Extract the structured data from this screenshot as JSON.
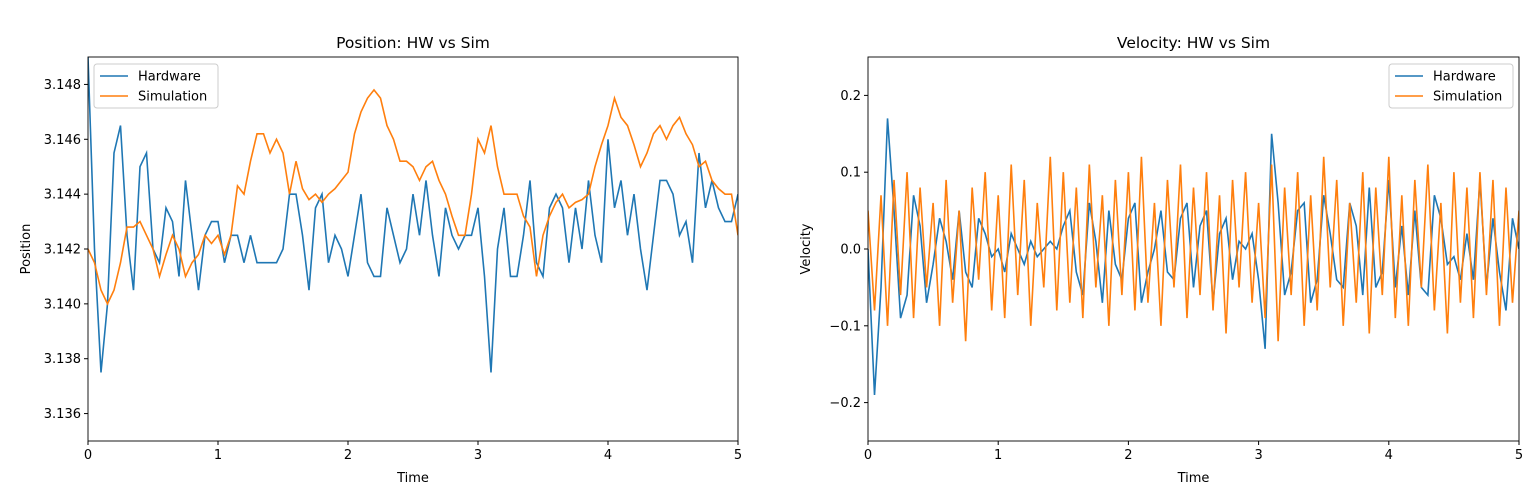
{
  "chart_data": [
    {
      "type": "line",
      "title": "Position: HW vs Sim",
      "xlabel": "Time",
      "ylabel": "Position",
      "xlim": [
        0,
        5
      ],
      "xticks": [
        0,
        1,
        2,
        3,
        4,
        5
      ],
      "ylim": [
        3.135,
        3.149
      ],
      "yticks": [
        3.136,
        3.138,
        {
          "value": 3.14,
          "label": "3.140"
        },
        3.142,
        3.144,
        3.146,
        3.148
      ],
      "legend": "upper left",
      "x": [
        0,
        0.05,
        0.1,
        0.15,
        0.2,
        0.25,
        0.3,
        0.35,
        0.4,
        0.45,
        0.5,
        0.55,
        0.6,
        0.65,
        0.7,
        0.75,
        0.8,
        0.85,
        0.9,
        0.95,
        1,
        1.05,
        1.1,
        1.15,
        1.2,
        1.25,
        1.3,
        1.35,
        1.4,
        1.45,
        1.5,
        1.55,
        1.6,
        1.65,
        1.7,
        1.75,
        1.8,
        1.85,
        1.9,
        1.95,
        2,
        2.05,
        2.1,
        2.15,
        2.2,
        2.25,
        2.3,
        2.35,
        2.4,
        2.45,
        2.5,
        2.55,
        2.6,
        2.65,
        2.7,
        2.75,
        2.8,
        2.85,
        2.9,
        2.95,
        3,
        3.05,
        3.1,
        3.15,
        3.2,
        3.25,
        3.3,
        3.35,
        3.4,
        3.45,
        3.5,
        3.55,
        3.6,
        3.65,
        3.7,
        3.75,
        3.8,
        3.85,
        3.9,
        3.95,
        4,
        4.05,
        4.1,
        4.15,
        4.2,
        4.25,
        4.3,
        4.35,
        4.4,
        4.45,
        4.5,
        4.55,
        4.6,
        4.65,
        4.7,
        4.75,
        4.8,
        4.85,
        4.9,
        4.95,
        5
      ],
      "series": [
        {
          "name": "Hardware",
          "color": "#1f77b4",
          "values": [
            3.149,
            3.142,
            3.1375,
            3.14,
            3.1455,
            3.1465,
            3.1425,
            3.1405,
            3.145,
            3.1455,
            3.142,
            3.1415,
            3.1435,
            3.143,
            3.141,
            3.1445,
            3.1425,
            3.1405,
            3.1425,
            3.143,
            3.143,
            3.1415,
            3.1425,
            3.1425,
            3.1415,
            3.1425,
            3.1415,
            3.1415,
            3.1415,
            3.1415,
            3.142,
            3.144,
            3.144,
            3.1425,
            3.1405,
            3.1435,
            3.144,
            3.1415,
            3.1425,
            3.142,
            3.141,
            3.1425,
            3.144,
            3.1415,
            3.141,
            3.141,
            3.1435,
            3.1425,
            3.1415,
            3.142,
            3.144,
            3.1425,
            3.1445,
            3.1425,
            3.141,
            3.1435,
            3.1425,
            3.142,
            3.1425,
            3.1425,
            3.1435,
            3.141,
            3.1375,
            3.142,
            3.1435,
            3.141,
            3.141,
            3.1425,
            3.1445,
            3.1415,
            3.141,
            3.1435,
            3.144,
            3.1435,
            3.1415,
            3.1435,
            3.142,
            3.1445,
            3.1425,
            3.1415,
            3.146,
            3.1435,
            3.1445,
            3.1425,
            3.144,
            3.142,
            3.1405,
            3.1425,
            3.1445,
            3.1445,
            3.144,
            3.1425,
            3.143,
            3.1415,
            3.1455,
            3.1435,
            3.1445,
            3.1435,
            3.143,
            3.143,
            3.144
          ]
        },
        {
          "name": "Simulation",
          "color": "#ff7f0e",
          "values": [
            3.142,
            3.1415,
            3.1405,
            3.14,
            3.1405,
            3.1415,
            3.1428,
            3.1428,
            3.143,
            3.1425,
            3.142,
            3.141,
            3.1418,
            3.1425,
            3.142,
            3.141,
            3.1415,
            3.1418,
            3.1425,
            3.1422,
            3.1425,
            3.1418,
            3.1425,
            3.1443,
            3.144,
            3.1452,
            3.1462,
            3.1462,
            3.1455,
            3.146,
            3.1455,
            3.144,
            3.1452,
            3.1442,
            3.1438,
            3.144,
            3.1437,
            3.144,
            3.1442,
            3.1445,
            3.1448,
            3.1462,
            3.147,
            3.1475,
            3.1478,
            3.1475,
            3.1465,
            3.146,
            3.1452,
            3.1452,
            3.145,
            3.1445,
            3.145,
            3.1452,
            3.1445,
            3.144,
            3.1432,
            3.1425,
            3.1425,
            3.144,
            3.146,
            3.1455,
            3.1465,
            3.145,
            3.144,
            3.144,
            3.144,
            3.1432,
            3.1428,
            3.141,
            3.1425,
            3.1432,
            3.1437,
            3.144,
            3.1435,
            3.1437,
            3.1438,
            3.144,
            3.145,
            3.1458,
            3.1465,
            3.1475,
            3.1468,
            3.1465,
            3.1458,
            3.145,
            3.1455,
            3.1462,
            3.1465,
            3.146,
            3.1465,
            3.1468,
            3.1462,
            3.1458,
            3.145,
            3.1452,
            3.1445,
            3.1442,
            3.144,
            3.144,
            3.1425
          ]
        }
      ]
    },
    {
      "type": "line",
      "title": "Velocity: HW vs Sim",
      "xlabel": "Time",
      "ylabel": "Velocity",
      "xlim": [
        0,
        5
      ],
      "xticks": [
        0,
        1,
        2,
        3,
        4,
        5
      ],
      "ylim": [
        -0.25,
        0.25
      ],
      "yticks": [
        {
          "value": -0.2,
          "label": "−0.2"
        },
        {
          "value": -0.1,
          "label": "−0.1"
        },
        {
          "value": 0,
          "label": "0.0"
        },
        0.1,
        0.2
      ],
      "legend": "upper right",
      "x": [
        0,
        0.05,
        0.1,
        0.15,
        0.2,
        0.25,
        0.3,
        0.35,
        0.4,
        0.45,
        0.5,
        0.55,
        0.6,
        0.65,
        0.7,
        0.75,
        0.8,
        0.85,
        0.9,
        0.95,
        1,
        1.05,
        1.1,
        1.15,
        1.2,
        1.25,
        1.3,
        1.35,
        1.4,
        1.45,
        1.5,
        1.55,
        1.6,
        1.65,
        1.7,
        1.75,
        1.8,
        1.85,
        1.9,
        1.95,
        2,
        2.05,
        2.1,
        2.15,
        2.2,
        2.25,
        2.3,
        2.35,
        2.4,
        2.45,
        2.5,
        2.55,
        2.6,
        2.65,
        2.7,
        2.75,
        2.8,
        2.85,
        2.9,
        2.95,
        3,
        3.05,
        3.1,
        3.15,
        3.2,
        3.25,
        3.3,
        3.35,
        3.4,
        3.45,
        3.5,
        3.55,
        3.6,
        3.65,
        3.7,
        3.75,
        3.8,
        3.85,
        3.9,
        3.95,
        4,
        4.05,
        4.1,
        4.15,
        4.2,
        4.25,
        4.3,
        4.35,
        4.4,
        4.45,
        4.5,
        4.55,
        4.6,
        4.65,
        4.7,
        4.75,
        4.8,
        4.85,
        4.9,
        4.95,
        5
      ],
      "series": [
        {
          "name": "Hardware",
          "color": "#1f77b4",
          "values": [
            0,
            -0.19,
            -0.05,
            0.17,
            0.05,
            -0.09,
            -0.06,
            0.07,
            0.03,
            -0.07,
            -0.02,
            0.04,
            0.01,
            -0.04,
            0.05,
            -0.03,
            -0.05,
            0.04,
            0.02,
            -0.01,
            0,
            -0.03,
            0.02,
            0,
            -0.02,
            0.01,
            -0.01,
            0,
            0.01,
            0,
            0.03,
            0.05,
            -0.03,
            -0.06,
            0.06,
            0.01,
            -0.07,
            0.05,
            -0.02,
            -0.04,
            0.04,
            0.06,
            -0.07,
            -0.03,
            0,
            0.05,
            -0.03,
            -0.04,
            0.04,
            0.06,
            -0.05,
            0.03,
            0.05,
            -0.07,
            0.02,
            0.04,
            -0.04,
            0.01,
            0,
            0.02,
            -0.04,
            -0.13,
            0.15,
            0.06,
            -0.06,
            -0.03,
            0.05,
            0.06,
            -0.07,
            -0.04,
            0.07,
            0.02,
            -0.04,
            -0.05,
            0.06,
            0.03,
            -0.06,
            0.08,
            -0.05,
            -0.03,
            0.09,
            -0.05,
            0.03,
            -0.06,
            0.05,
            -0.05,
            -0.06,
            0.07,
            0.04,
            -0.02,
            -0.01,
            -0.04,
            0.02,
            -0.04,
            0.09,
            -0.05,
            0.04,
            -0.03,
            -0.08,
            0.04,
            0
          ]
        },
        {
          "name": "Simulation",
          "color": "#ff7f0e",
          "values": [
            0.05,
            -0.08,
            0.07,
            -0.1,
            0.09,
            -0.06,
            0.1,
            -0.09,
            0.08,
            -0.05,
            0.06,
            -0.1,
            0.09,
            -0.07,
            0.05,
            -0.12,
            0.08,
            -0.04,
            0.1,
            -0.08,
            0.07,
            -0.09,
            0.11,
            -0.06,
            0.09,
            -0.1,
            0.06,
            -0.05,
            0.12,
            -0.08,
            0.1,
            -0.07,
            0.08,
            -0.09,
            0.11,
            -0.05,
            0.07,
            -0.1,
            0.09,
            -0.06,
            0.1,
            -0.08,
            0.12,
            -0.07,
            0.06,
            -0.1,
            0.09,
            -0.05,
            0.11,
            -0.09,
            0.08,
            -0.06,
            0.1,
            -0.08,
            0.07,
            -0.11,
            0.09,
            -0.05,
            0.1,
            -0.07,
            0.06,
            -0.09,
            0.11,
            -0.12,
            0.08,
            -0.06,
            0.1,
            -0.1,
            0.07,
            -0.08,
            0.12,
            -0.05,
            0.09,
            -0.1,
            0.06,
            -0.07,
            0.1,
            -0.11,
            0.08,
            -0.06,
            0.12,
            -0.09,
            0.07,
            -0.1,
            0.09,
            -0.05,
            0.11,
            -0.08,
            0.06,
            -0.11,
            0.1,
            -0.07,
            0.08,
            -0.09,
            0.1,
            -0.06,
            0.09,
            -0.1,
            0.08,
            -0.07,
            0.05
          ]
        }
      ]
    }
  ]
}
